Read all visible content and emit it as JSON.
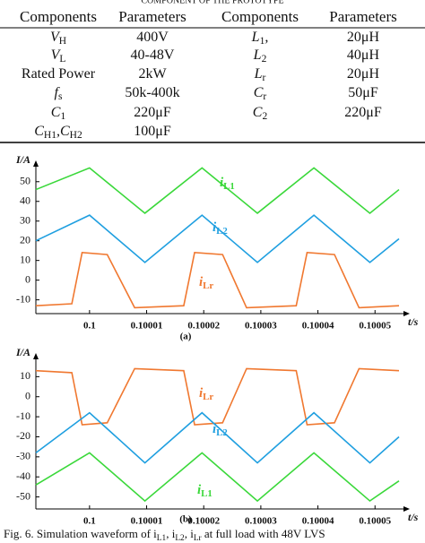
{
  "table": {
    "caption": "COMPONENT OF THE PROTOTYPE",
    "header": [
      "Components",
      "Parameters",
      "Components",
      "Parameters"
    ],
    "rows": [
      [
        [
          "V",
          "H"
        ],
        [
          "400V"
        ],
        [
          "L",
          "1",
          ","
        ],
        [
          "20μH"
        ]
      ],
      [
        [
          "V",
          "L"
        ],
        [
          "40-48V"
        ],
        [
          "L",
          "2"
        ],
        [
          "40μH"
        ]
      ],
      [
        [
          "Rated Power"
        ],
        [
          "2kW"
        ],
        [
          "L",
          "r"
        ],
        [
          "20μH"
        ]
      ],
      [
        [
          "f",
          "s"
        ],
        [
          "50k-400k"
        ],
        [
          "C",
          "r"
        ],
        [
          "50μF"
        ]
      ],
      [
        [
          "C",
          "1"
        ],
        [
          "220μF"
        ],
        [
          "C",
          "2"
        ],
        [
          "220μF"
        ]
      ],
      [
        [
          "C",
          "H1",
          ",C",
          "H2"
        ],
        [
          "100μF"
        ]
      ]
    ]
  },
  "chart_data": [
    {
      "type": "line",
      "ylabel": "I/A",
      "xlabel": "t/s",
      "annotation": "(a)",
      "xlim": [
        0.0999906,
        0.1000542
      ],
      "ylim": [
        -17,
        59
      ],
      "xticks": [
        0.1,
        0.10001,
        0.10002,
        0.10003,
        0.10004,
        0.10005
      ],
      "yticks": [
        50,
        40,
        30,
        20,
        10,
        0,
        -10
      ],
      "series": [
        {
          "name": [
            "i",
            "L1"
          ],
          "color": "#3ad83a",
          "x": [
            0.0999906,
            0.1,
            0.1000097,
            0.1000197,
            0.1000294,
            0.1000393,
            0.1000491,
            0.1000542
          ],
          "values": [
            46,
            57,
            34,
            57,
            34,
            57,
            34,
            46
          ]
        },
        {
          "name": [
            "i",
            "L2"
          ],
          "color": "#1f9fe0",
          "x": [
            0.0999906,
            0.1,
            0.1000097,
            0.1000197,
            0.1000294,
            0.1000393,
            0.1000491,
            0.1000542
          ],
          "values": [
            20,
            33,
            9,
            33,
            9,
            33,
            9,
            21
          ]
        },
        {
          "name": [
            "i",
            "Lr"
          ],
          "color": "#f07830",
          "x": [
            0.0999906,
            0.0999969,
            0.0999987,
            0.1000031,
            0.1000079,
            0.1000165,
            0.1000184,
            0.1000233,
            0.1000275,
            0.1000362,
            0.1000381,
            0.1000429,
            0.1000472,
            0.1000542
          ],
          "values": [
            -13,
            -12,
            14,
            13,
            -14,
            -13,
            14,
            13,
            -14,
            -13,
            14,
            13,
            -14,
            -13
          ]
        }
      ]
    },
    {
      "type": "line",
      "ylabel": "I/A",
      "xlabel": "t/s",
      "annotation": "(b)",
      "xlim": [
        0.0999906,
        0.1000542
      ],
      "ylim": [
        -56,
        20
      ],
      "xticks": [
        0.1,
        0.10001,
        0.10002,
        0.10003,
        0.10004,
        0.10005
      ],
      "yticks": [
        10,
        0,
        -10,
        -20,
        -30,
        -40,
        -50
      ],
      "series": [
        {
          "name": [
            "i",
            "Lr"
          ],
          "color": "#f07830",
          "x": [
            0.0999906,
            0.0999969,
            0.0999987,
            0.1000031,
            0.1000079,
            0.1000165,
            0.1000184,
            0.1000233,
            0.1000275,
            0.1000362,
            0.1000381,
            0.1000429,
            0.1000472,
            0.1000542
          ],
          "values": [
            13,
            12,
            -14,
            -13,
            14,
            13,
            -14,
            -13,
            14,
            13,
            -14,
            -13,
            14,
            13
          ]
        },
        {
          "name": [
            "i",
            "L2"
          ],
          "color": "#1f9fe0",
          "x": [
            0.0999906,
            0.1,
            0.1000097,
            0.1000197,
            0.1000294,
            0.1000393,
            0.1000491,
            0.1000542
          ],
          "values": [
            -28,
            -8,
            -33,
            -8,
            -33,
            -8,
            -33,
            -20
          ]
        },
        {
          "name": [
            "i",
            "L1"
          ],
          "color": "#3ad83a",
          "x": [
            0.0999906,
            0.1,
            0.1000097,
            0.1000197,
            0.1000294,
            0.1000393,
            0.1000491,
            0.1000542
          ],
          "values": [
            -44,
            -28,
            -52,
            -28,
            -52,
            -28,
            -52,
            -42
          ]
        }
      ]
    }
  ],
  "caption": [
    "Fig. 6.    Simulation waveform of i",
    "L1",
    ", i",
    "L2",
    ", i",
    "Lr",
    " at full load with 48V LVS"
  ]
}
